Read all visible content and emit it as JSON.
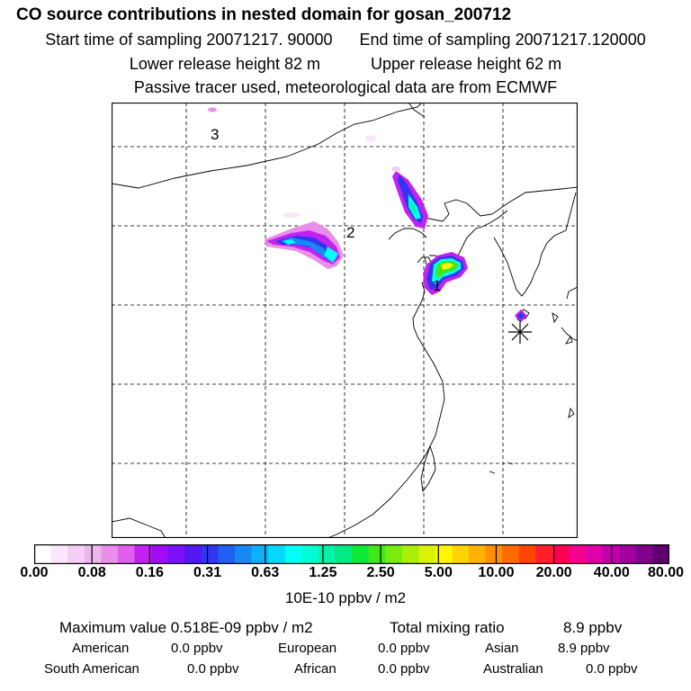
{
  "header": {
    "title": "CO  source contributions in nested domain for gosan_200712",
    "start_label": "Start time of sampling 20071217. 90000",
    "end_label": "End time of sampling 20071217.120000",
    "lower_label": "Lower release height   82 m",
    "upper_label": "Upper release height   62 m",
    "note": "Passive tracer used, meteorological data are from ECMWF"
  },
  "map": {
    "labels": [
      "3",
      "2",
      "1"
    ],
    "receptor_icon": "asterisk-marker-icon"
  },
  "legend": {
    "tick_labels": [
      "0.00",
      "0.08",
      "0.16",
      "0.31",
      "0.63",
      "1.25",
      "2.50",
      "5.00",
      "10.00",
      "20.00",
      "40.00",
      "80.00"
    ],
    "unit": "10E-10 ppbv / m2",
    "colors": [
      "#ffffff",
      "#fbe6fb",
      "#f5cef5",
      "#efb5ef",
      "#e98fe9",
      "#df5fef",
      "#c222f0",
      "#a00cf6",
      "#7a10f5",
      "#5318f2",
      "#3135ef",
      "#1f60f0",
      "#1888f5",
      "#0fb0f8",
      "#04d8fb",
      "#00fff7",
      "#00fcd2",
      "#00f3a8",
      "#00e985",
      "#10e838",
      "#40e81a",
      "#78ec0e",
      "#a8f00a",
      "#d8f406",
      "#fff800",
      "#ffd400",
      "#ffb200",
      "#ff9000",
      "#ff6a00",
      "#ff4400",
      "#ff1e2a",
      "#ff0050",
      "#f50090",
      "#e000a8",
      "#c000a8",
      "#a000a0",
      "#80008c",
      "#600070"
    ]
  },
  "stats": {
    "max_label": "Maximum value  0.518E-09 ppbv / m2",
    "total_label": "Total mixing ratio",
    "total_value": "8.9 ppbv",
    "american_label": "American",
    "american_value": "0.0 ppbv",
    "european_label": "European",
    "european_value": "0.0 ppbv",
    "asian_label": "Asian",
    "asian_value": "8.9 ppbv",
    "south_american_label": "South American",
    "south_american_value": "0.0 ppbv",
    "african_label": "African",
    "african_value": "0.0 ppbv",
    "australian_label": "Australian",
    "australian_value": "0.0 ppbv"
  }
}
